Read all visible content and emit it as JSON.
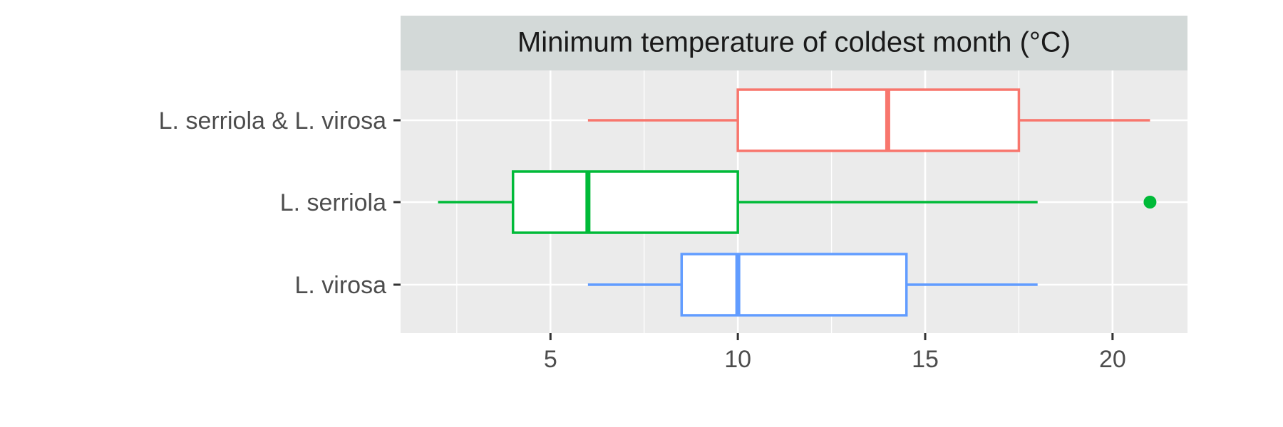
{
  "chart_data": {
    "type": "boxplot",
    "orientation": "horizontal",
    "title": "Minimum temperature of coldest month (°C)",
    "xlabel": "",
    "ylabel": "",
    "xlim": [
      1,
      22
    ],
    "x_ticks": [
      5,
      10,
      15,
      20
    ],
    "grid": true,
    "legend": "none",
    "categories": [
      "L. serriola & L. virosa",
      "L. serriola",
      "L. virosa"
    ],
    "series": [
      {
        "category": "L. serriola & L. virosa",
        "color": "#f8766d",
        "whisker_low": 6,
        "q1": 10,
        "median": 14,
        "q3": 17.5,
        "whisker_high": 21,
        "outliers": []
      },
      {
        "category": "L. serriola",
        "color": "#00ba38",
        "whisker_low": 2,
        "q1": 4,
        "median": 6,
        "q3": 10,
        "whisker_high": 18,
        "outliers": [
          21
        ]
      },
      {
        "category": "L. virosa",
        "color": "#619cff",
        "whisker_low": 6,
        "q1": 8.5,
        "median": 10,
        "q3": 14.5,
        "whisker_high": 18,
        "outliers": []
      }
    ]
  }
}
